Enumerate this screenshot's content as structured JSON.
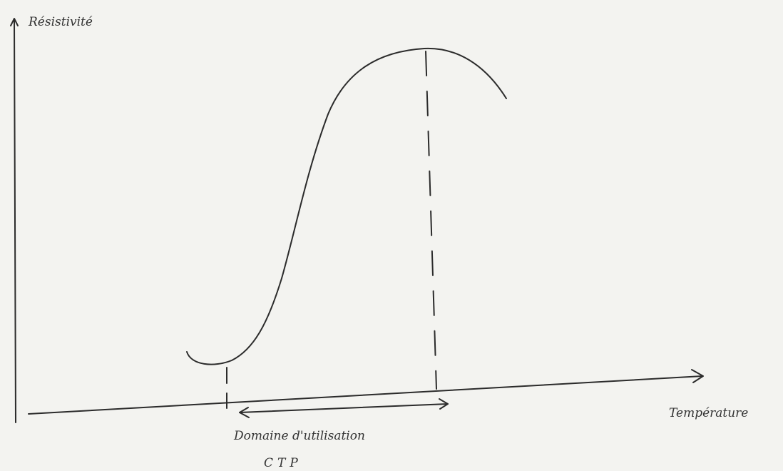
{
  "axes": {
    "y_label": "Résistivité",
    "x_label": "Température"
  },
  "annotation": {
    "range_label": "Domaine d'utilisation",
    "component": "CTP"
  }
}
